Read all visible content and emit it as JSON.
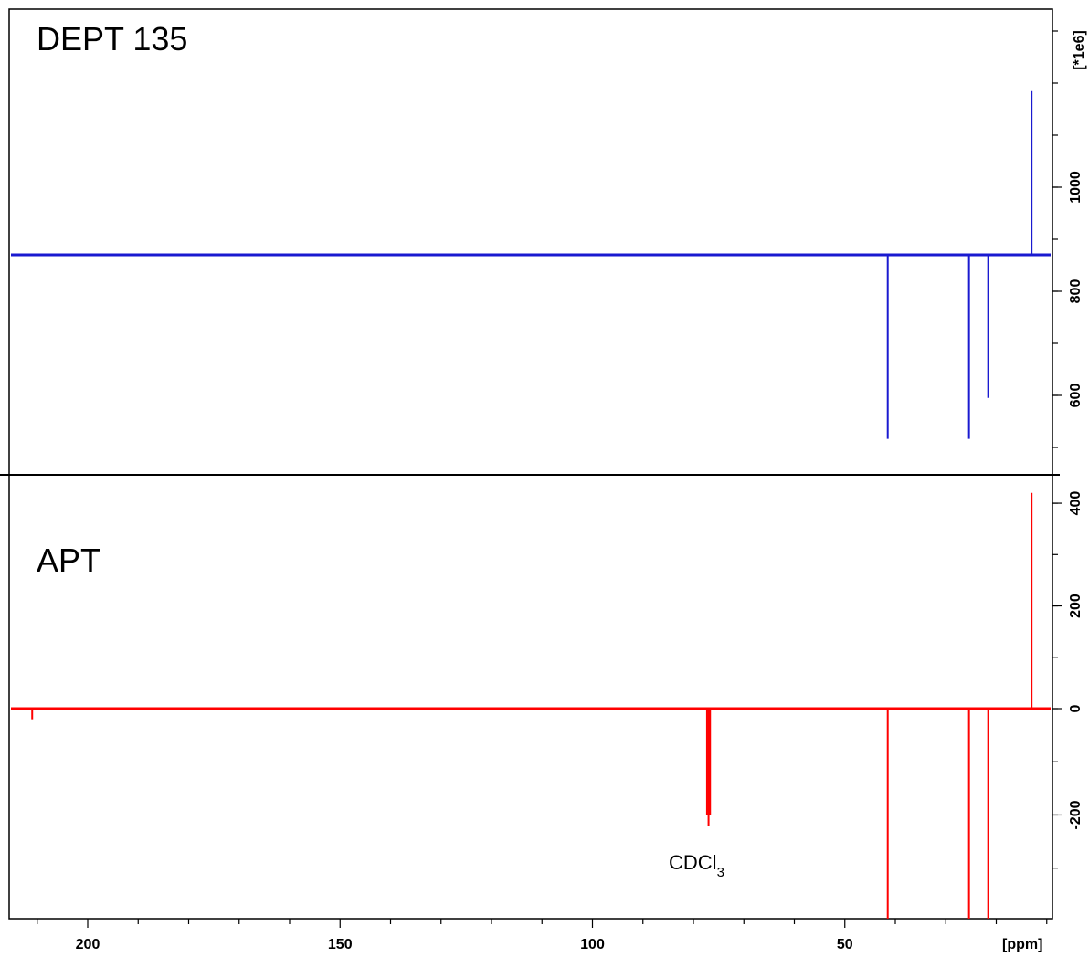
{
  "chart_data": {
    "type": "line",
    "xlabel": "[ppm]",
    "ylabel": "[*1e6]",
    "x_reversed": true,
    "xlim": [
      215,
      0
    ],
    "x_ticks": [
      200,
      150,
      100,
      50
    ],
    "colors": {
      "DEPT 135": "#1a1ad0",
      "APT": "#ff0000"
    },
    "panels": [
      {
        "name": "DEPT 135",
        "color": "#1a1ad0",
        "baseline": 0,
        "ylim": [
          -150,
          400
        ],
        "peaks": [
          {
            "x": 13.0,
            "y": 320
          },
          {
            "x": 41.5,
            "y": -135
          },
          {
            "x": 25.4,
            "y": -135
          },
          {
            "x": 21.6,
            "y": -105
          }
        ]
      },
      {
        "name": "APT",
        "color": "#ff0000",
        "baseline": 0,
        "ylim": [
          -395,
          425
        ],
        "y_ticks": [
          -200,
          0,
          200,
          400
        ],
        "peaks": [
          {
            "x": 211.0,
            "y": -20
          },
          {
            "x": 77.3,
            "y": -200
          },
          {
            "x": 77.0,
            "y": -220
          },
          {
            "x": 76.7,
            "y": -200
          },
          {
            "x": 41.5,
            "y": -395
          },
          {
            "x": 25.4,
            "y": -395
          },
          {
            "x": 21.6,
            "y": -395
          },
          {
            "x": 13.0,
            "y": 420
          }
        ]
      }
    ],
    "y_ticks_upper_labels": [
      1000,
      800,
      600
    ],
    "annotations": [
      {
        "text": "CDCl",
        "subscript": "3"
      }
    ]
  }
}
